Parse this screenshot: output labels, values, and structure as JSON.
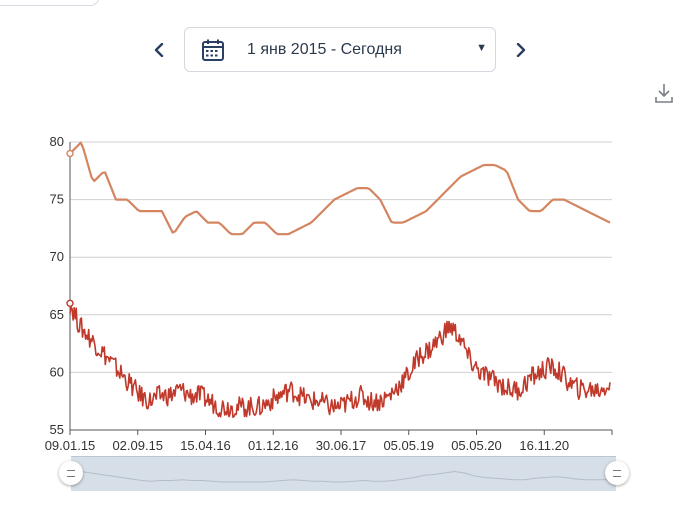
{
  "date_picker": {
    "label": "1 янв 2015 - Сегодня",
    "prev_icon": "chevron-left-icon",
    "next_icon": "chevron-right-icon",
    "calendar_icon": "calendar-icon",
    "caret": "▼"
  },
  "toolbar": {
    "download_icon": "download-icon"
  },
  "colors": {
    "upper_series": "#d48560",
    "lower_series": "#c0392b",
    "gridline": "#d0d0d0",
    "nav_arrow": "#2b3f63",
    "scroller": "#d6dee8"
  },
  "chart_data": {
    "type": "line",
    "ylim": [
      55,
      80
    ],
    "yticks": [
      55,
      60,
      65,
      70,
      75,
      80
    ],
    "x_tick_labels": [
      "09.01.15",
      "02.09.15",
      "15.04.16",
      "01.12.16",
      "30.06.17",
      "05.05.19",
      "05.05.20",
      "16.11.20"
    ],
    "grid": true,
    "series": [
      {
        "values": [
          79,
          80,
          76.5,
          77.5,
          75,
          75,
          74,
          74,
          74,
          72,
          73.5,
          74,
          73,
          73,
          72,
          72,
          73,
          73,
          72,
          72,
          72.5,
          73,
          74,
          75,
          75.5,
          76,
          76,
          75,
          73,
          73,
          73.5,
          74,
          75,
          76,
          77,
          77.5,
          78,
          78,
          77.5,
          75,
          74,
          74,
          75,
          75,
          74.5,
          74,
          73.5,
          73
        ]
      },
      {
        "values": [
          66,
          64,
          63,
          62,
          61,
          60,
          59,
          58,
          57.5,
          58,
          58,
          58.5,
          58,
          58,
          57.5,
          57,
          57,
          57,
          57,
          57,
          57.5,
          58,
          58.5,
          58,
          57.5,
          57.5,
          57,
          57,
          57.5,
          58,
          57.5,
          57.5,
          58,
          59,
          60,
          61.5,
          62,
          63,
          64,
          63,
          61,
          60,
          59.5,
          59,
          58.5,
          58.5,
          59.5,
          60,
          60.5,
          60,
          59,
          58.5,
          58.5,
          58.5,
          59
        ]
      }
    ]
  }
}
